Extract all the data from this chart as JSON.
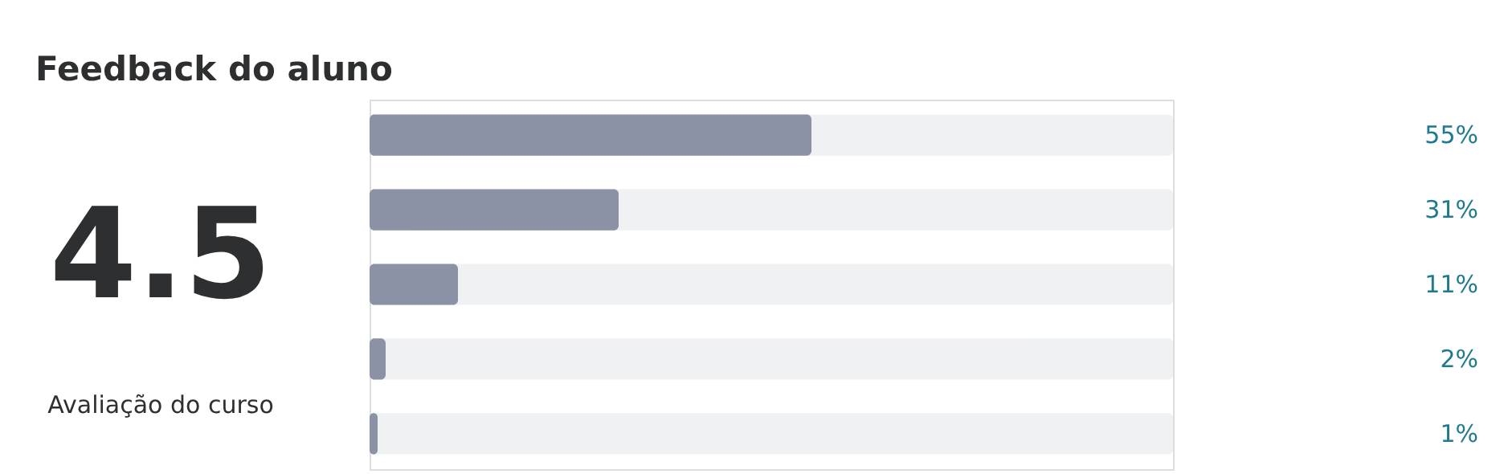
{
  "chart_data": {
    "type": "bar",
    "orientation": "horizontal",
    "title": "Feedback do aluno",
    "categories": [
      null,
      null,
      null,
      null,
      null
    ],
    "values": [
      55,
      31,
      11,
      2,
      1
    ],
    "color": "#8b92a5",
    "value_labels": [
      "55%",
      "31%",
      "11%",
      "2%",
      "1%"
    ],
    "xlim": [
      0,
      100
    ],
    "tick_labels": false,
    "annotations": [
      "4.5",
      "Avaliação do curso"
    ]
  }
}
